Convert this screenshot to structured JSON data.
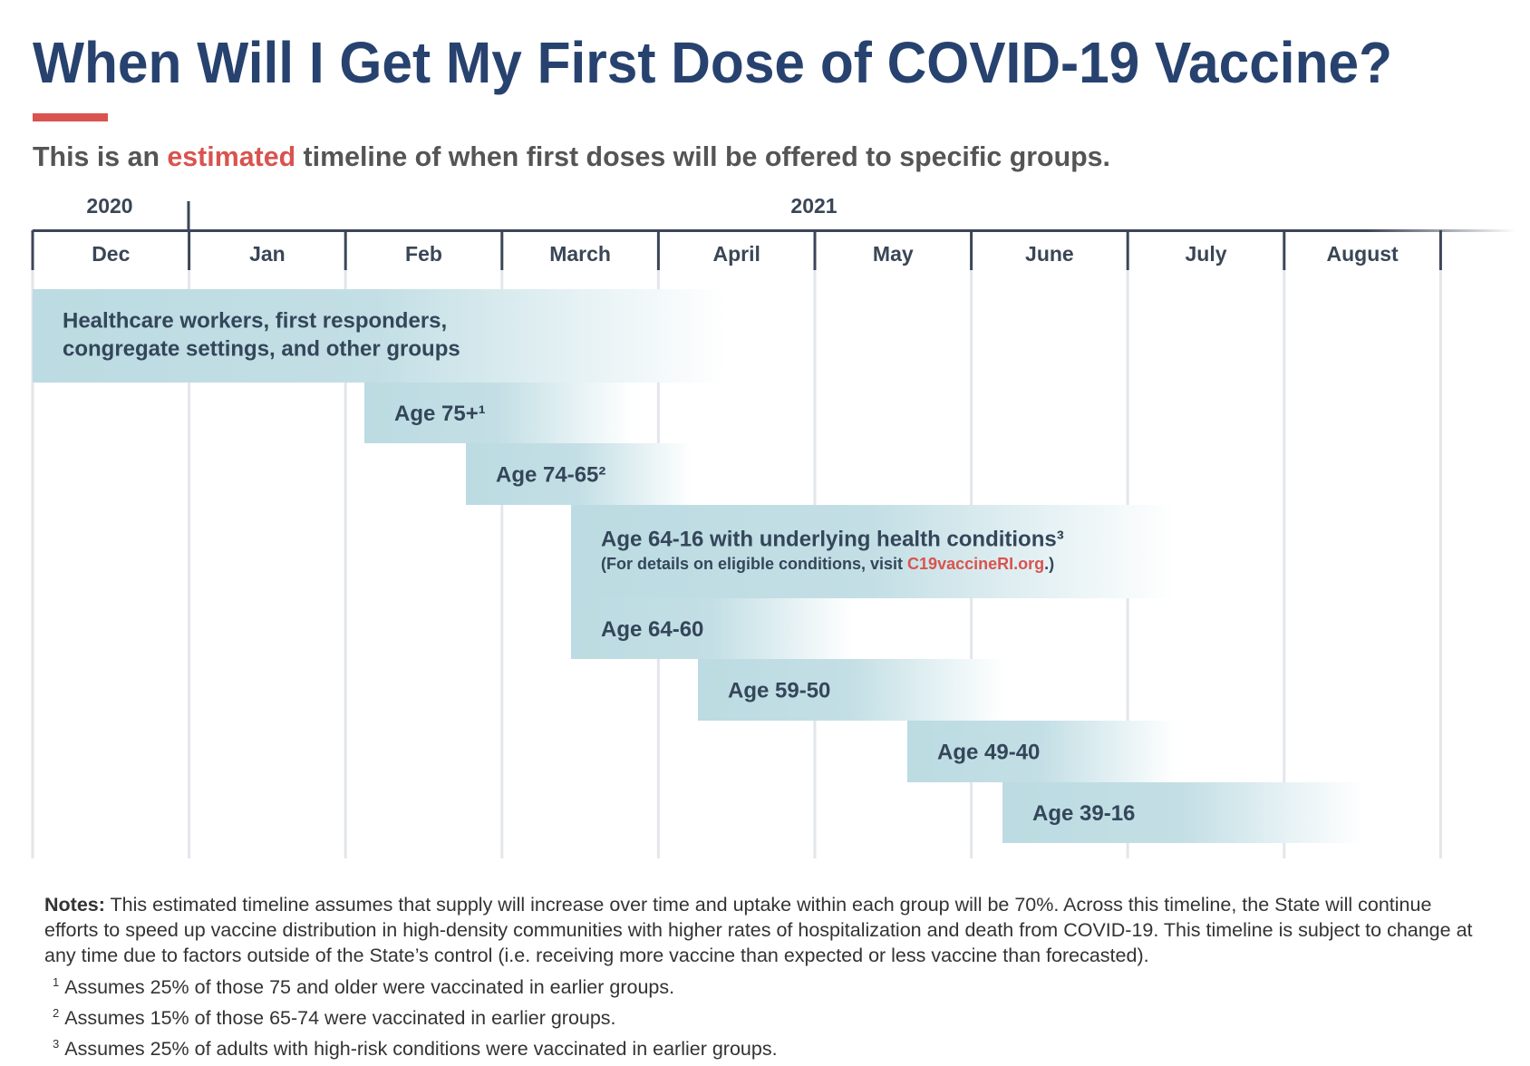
{
  "header": {
    "title": "When Will I Get My First Dose of COVID-19 Vaccine?",
    "subtitle": {
      "before": "This is an ",
      "highlight": "estimated",
      "after": " timeline of when first doses will be offered to specific groups."
    }
  },
  "timeline": {
    "years": [
      "2020",
      "2021"
    ],
    "months": [
      "Dec",
      "Jan",
      "Feb",
      "March",
      "April",
      "May",
      "June",
      "July",
      "August"
    ],
    "groups": [
      {
        "lines": [
          "Healthcare workers, first responders,",
          "congregate settings, and other groups"
        ]
      },
      {
        "label": "Age 75+¹"
      },
      {
        "label": "Age 74-65²"
      },
      {
        "label": "Age 64-16 with underlying health conditions³",
        "note": {
          "before": "(For details on eligible conditions, visit ",
          "link": "C19vaccineRI.org",
          "after": ".)"
        }
      },
      {
        "label": "Age 64-60"
      },
      {
        "label": "Age 59-50"
      },
      {
        "label": "Age 49-40"
      },
      {
        "label": "Age 39-16"
      }
    ]
  },
  "notes": {
    "label": "Notes:",
    "text": " This estimated timeline assumes that supply will increase over time and uptake within each group will be 70%. Across this timeline, the State will continue efforts to speed up vaccine distribution in high-density communities with higher rates of hospitalization and death from COVID-19. This timeline is subject to change at any time due to factors outside of the State’s control (i.e. receiving more vaccine than expected or less vaccine than forecasted).",
    "footnotes": [
      {
        "marker": "1",
        "text": "Assumes 25% of those 75 and older were vaccinated in earlier groups."
      },
      {
        "marker": "2",
        "text": "Assumes 15% of those 65-74 were vaccinated in earlier groups."
      },
      {
        "marker": "3",
        "text": "Assumes 25% of adults with high-risk conditions were vaccinated in earlier groups."
      }
    ]
  }
}
